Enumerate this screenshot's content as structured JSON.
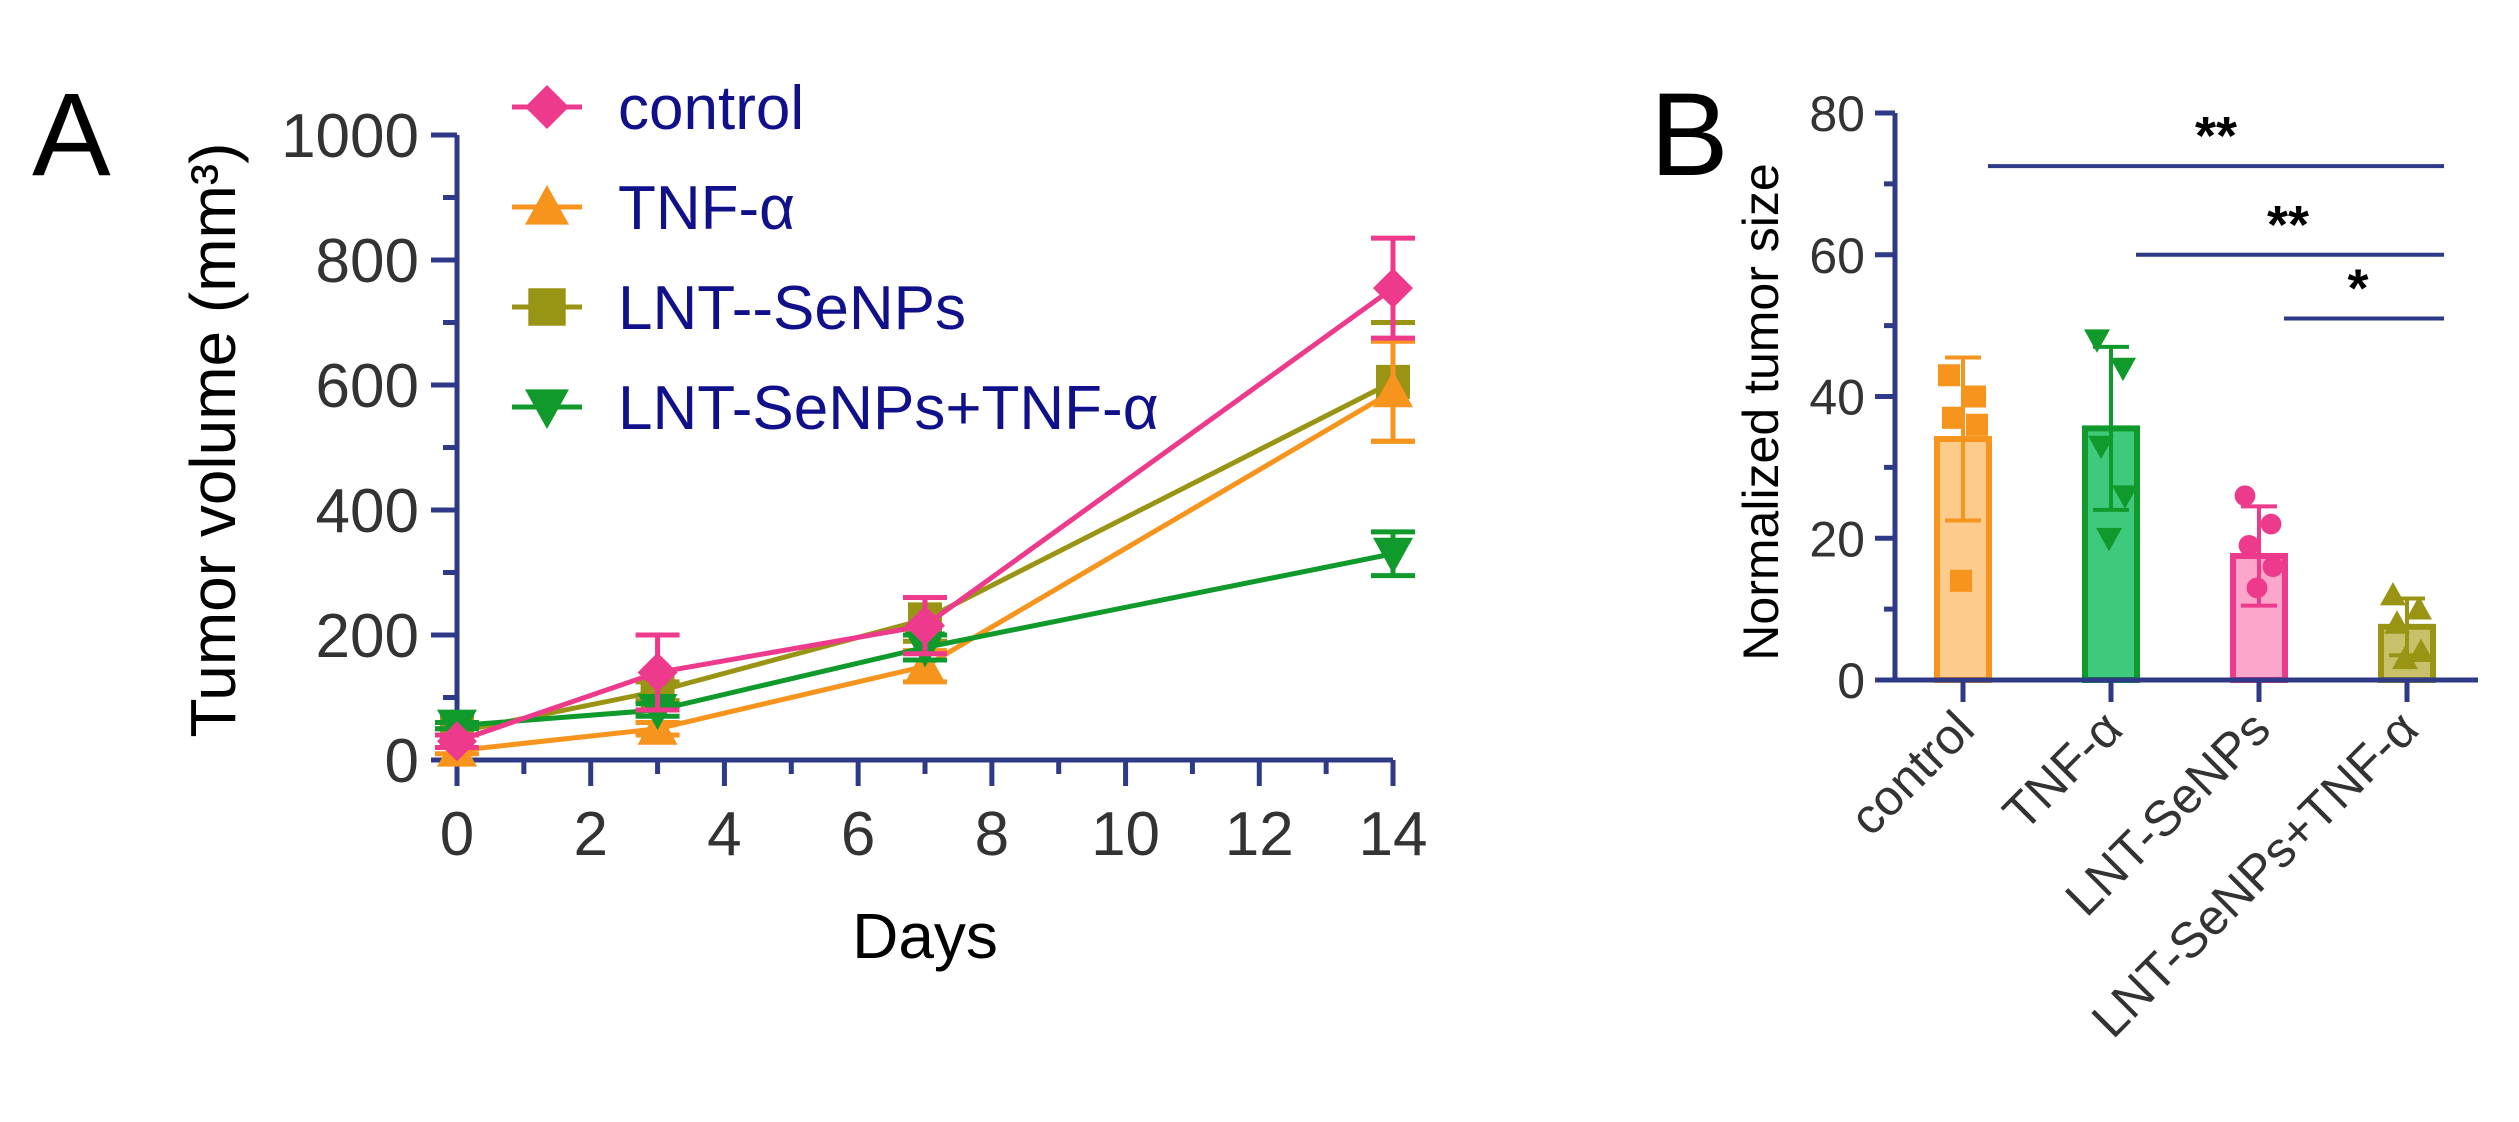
{
  "panels": {
    "a_letter": "A",
    "b_letter": "B"
  },
  "chart_data": [
    {
      "type": "line",
      "panel": "A",
      "title": "",
      "xlabel": "Days",
      "ylabel": "Tumor volume (mm³)",
      "xlim": [
        0,
        14
      ],
      "ylim": [
        0,
        1000
      ],
      "xticks": [
        0,
        2,
        4,
        6,
        8,
        10,
        12,
        14
      ],
      "yticks": [
        0,
        200,
        400,
        600,
        800,
        1000
      ],
      "grid": false,
      "legend_position": "top-left",
      "x": [
        0,
        3,
        7,
        14
      ],
      "series": [
        {
          "name": "control",
          "marker": "diamond",
          "color": "#ee3a8c",
          "values": [
            30,
            140,
            215,
            755
          ],
          "errors": [
            10,
            60,
            45,
            80
          ]
        },
        {
          "name": "TNF-α",
          "marker": "triangle-up",
          "color": "#f7941d",
          "values": [
            15,
            50,
            150,
            590
          ],
          "errors": [
            5,
            10,
            25,
            80
          ]
        },
        {
          "name": "LNT--SeNPs",
          "marker": "square",
          "color": "#9a9415",
          "values": [
            45,
            110,
            225,
            605
          ],
          "errors": [
            5,
            15,
            35,
            95
          ]
        },
        {
          "name": "LNT-SeNPs+TNF-α",
          "marker": "triangle-down",
          "color": "#109a2c",
          "values": [
            55,
            80,
            180,
            330
          ],
          "errors": [
            5,
            10,
            20,
            35
          ]
        }
      ]
    },
    {
      "type": "bar",
      "panel": "B",
      "title": "",
      "xlabel": "",
      "ylabel": "Normalized tumor size",
      "ylim": [
        0,
        80
      ],
      "yticks": [
        0,
        20,
        40,
        60,
        80
      ],
      "grid": false,
      "categories": [
        "control",
        "TNF-α",
        "LNT-SeNPs",
        "LNT-SeNPs+TNF-α"
      ],
      "values": [
        34,
        35.5,
        17.5,
        7.5
      ],
      "errors": [
        11.5,
        11.5,
        7,
        4
      ],
      "fill_colors": [
        "#fdcb8c",
        "#3ec97c",
        "#fca6cc",
        "#c8c06a"
      ],
      "edge_colors": [
        "#f7941d",
        "#109a2c",
        "#ee3a8c",
        "#9a9415"
      ],
      "markers": [
        "square",
        "triangle-down",
        "circle",
        "triangle-up"
      ],
      "points": [
        [
          43,
          40,
          37,
          36,
          14
        ],
        [
          48,
          44,
          33,
          26,
          20
        ],
        [
          26,
          22,
          19,
          16,
          13
        ],
        [
          12,
          10,
          8,
          4,
          3
        ]
      ],
      "significance": [
        {
          "from": 0,
          "to": 3,
          "label": "**"
        },
        {
          "from": 1,
          "to": 3,
          "label": "**"
        },
        {
          "from": 2,
          "to": 3,
          "label": "*"
        }
      ]
    }
  ]
}
